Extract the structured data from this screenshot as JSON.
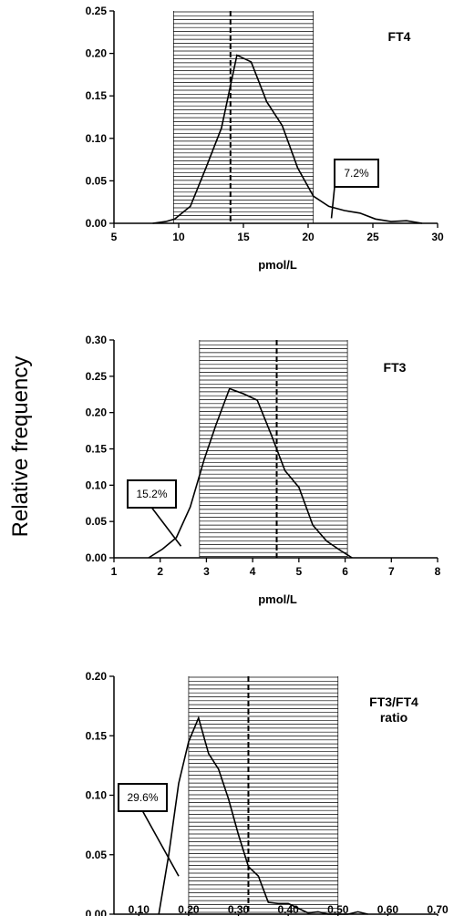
{
  "figure": {
    "ylabel": "Relative frequency"
  },
  "chart_data": [
    {
      "type": "line",
      "title": "FT4",
      "xlabel": "pmol/L",
      "xlim": [
        5,
        30
      ],
      "ylim": [
        0,
        0.25
      ],
      "xticks": [
        5,
        10,
        15,
        20,
        25,
        30
      ],
      "xtick_labels": [
        "5",
        "10",
        "15",
        "20",
        "25",
        "30"
      ],
      "yticks": [
        0,
        0.05,
        0.1,
        0.15,
        0.2,
        0.25
      ],
      "ytick_labels": [
        "0.00",
        "0.05",
        "0.10",
        "0.15",
        "0.20",
        "0.25"
      ],
      "x": [
        8,
        9,
        9.7,
        10.9,
        12.1,
        13.3,
        14.5,
        15.6,
        16.8,
        18,
        19.2,
        20.4,
        21.6,
        22.8,
        24,
        25.2,
        26.4,
        27.6,
        28.8
      ],
      "values": [
        0,
        0.002,
        0.005,
        0.02,
        0.065,
        0.112,
        0.198,
        0.19,
        0.143,
        0.115,
        0.065,
        0.032,
        0.02,
        0.015,
        0.012,
        0.005,
        0.002,
        0.003,
        0
      ],
      "reference_interval": [
        9.6,
        20.4
      ],
      "dashed_line_x": 14.0,
      "annotation": {
        "label": "7.2%",
        "pointer_x": 21.8,
        "pointer_y": 0.006
      }
    },
    {
      "type": "line",
      "title": "FT3",
      "xlabel": "pmol/L",
      "xlim": [
        1,
        8
      ],
      "ylim": [
        0,
        0.3
      ],
      "xticks": [
        1,
        2,
        3,
        4,
        5,
        6,
        7,
        8
      ],
      "xtick_labels": [
        "1",
        "2",
        "3",
        "4",
        "5",
        "6",
        "7",
        "8"
      ],
      "yticks": [
        0,
        0.05,
        0.1,
        0.15,
        0.2,
        0.25,
        0.3
      ],
      "ytick_labels": [
        "0.00",
        "0.05",
        "0.10",
        "0.15",
        "0.20",
        "0.25",
        "0.30"
      ],
      "x": [
        1.75,
        2.05,
        2.35,
        2.65,
        2.95,
        3.2,
        3.5,
        3.8,
        4.1,
        4.4,
        4.7,
        5.0,
        5.3,
        5.6,
        5.9,
        6.15
      ],
      "values": [
        0,
        0.012,
        0.028,
        0.07,
        0.135,
        0.182,
        0.233,
        0.226,
        0.217,
        0.17,
        0.12,
        0.097,
        0.045,
        0.023,
        0.01,
        0
      ],
      "reference_interval": [
        2.85,
        6.05
      ],
      "dashed_line_x": 4.52,
      "annotation": {
        "label": "15.2%",
        "pointer_x": 2.45,
        "pointer_y": 0.016
      }
    },
    {
      "type": "line",
      "title": "FT3/FT4\nratio",
      "xlabel": "",
      "xlim": [
        0.05,
        0.7
      ],
      "ylim": [
        0,
        0.2
      ],
      "xticks": [
        0.1,
        0.2,
        0.3,
        0.4,
        0.5,
        0.6,
        0.7
      ],
      "xtick_labels": [
        "0.10",
        "0.20",
        "0.30",
        "0.40",
        "0.50",
        "0.60",
        "0.70"
      ],
      "yticks": [
        0,
        0.05,
        0.1,
        0.15,
        0.2
      ],
      "ytick_labels": [
        "0.00",
        "0.05",
        "0.10",
        "0.15",
        "0.20"
      ],
      "x": [
        0.14,
        0.16,
        0.18,
        0.2,
        0.22,
        0.24,
        0.26,
        0.28,
        0.3,
        0.32,
        0.34,
        0.36,
        0.38,
        0.4,
        0.42,
        0.44,
        0.46,
        0.48,
        0.5,
        0.52,
        0.54,
        0.56
      ],
      "values": [
        0,
        0.05,
        0.11,
        0.145,
        0.165,
        0.135,
        0.122,
        0.097,
        0.067,
        0.04,
        0.032,
        0.01,
        0.009,
        0.009,
        0.005,
        0.001,
        0.002,
        0,
        0,
        0,
        0.002,
        0
      ],
      "reference_interval": [
        0.2,
        0.5
      ],
      "dashed_line_x": 0.32,
      "annotation": {
        "label": "29.6%",
        "pointer_x": 0.18,
        "pointer_y": 0.032
      }
    }
  ]
}
